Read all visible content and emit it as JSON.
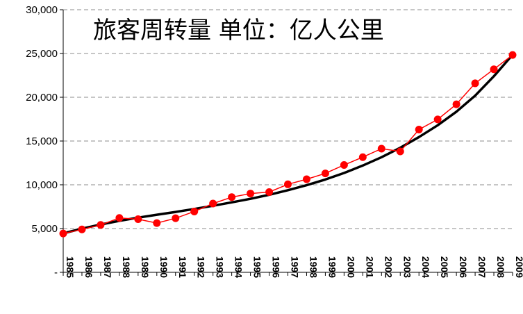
{
  "chart_data": {
    "type": "line",
    "title": "旅客周转量 单位：亿人公里",
    "xlabel": "",
    "ylabel": "",
    "x": [
      "1985",
      "1986",
      "1987",
      "1988",
      "1989",
      "1990",
      "1991",
      "1992",
      "1993",
      "1994",
      "1995",
      "1996",
      "1997",
      "1998",
      "1999",
      "2000",
      "2001",
      "2002",
      "2003",
      "2004",
      "2005",
      "2006",
      "2007",
      "2008",
      "2009"
    ],
    "y_tick_labels": [
      "-",
      "5,000",
      "10,000",
      "15,000",
      "20,000",
      "25,000",
      "30,000"
    ],
    "ylim": [
      0,
      30000
    ],
    "grid": "horizontal dashed",
    "series": [
      {
        "kind": "data",
        "color": "#ff0000",
        "marker": "circle",
        "values": [
          4436,
          4897,
          5412,
          6208,
          6074,
          5628,
          6178,
          6949,
          7858,
          8591,
          9002,
          9165,
          10055,
          10637,
          11300,
          12261,
          13155,
          14126,
          13811,
          16309,
          17467,
          19197,
          21593,
          23197,
          24835
        ]
      },
      {
        "kind": "trend",
        "color": "#000000",
        "values": [
          4450,
          4990,
          5460,
          5880,
          6250,
          6580,
          6900,
          7240,
          7600,
          7990,
          8400,
          8860,
          9380,
          9950,
          10600,
          11350,
          12200,
          13150,
          14230,
          15450,
          16800,
          18350,
          20180,
          22400,
          24850
        ]
      }
    ]
  }
}
